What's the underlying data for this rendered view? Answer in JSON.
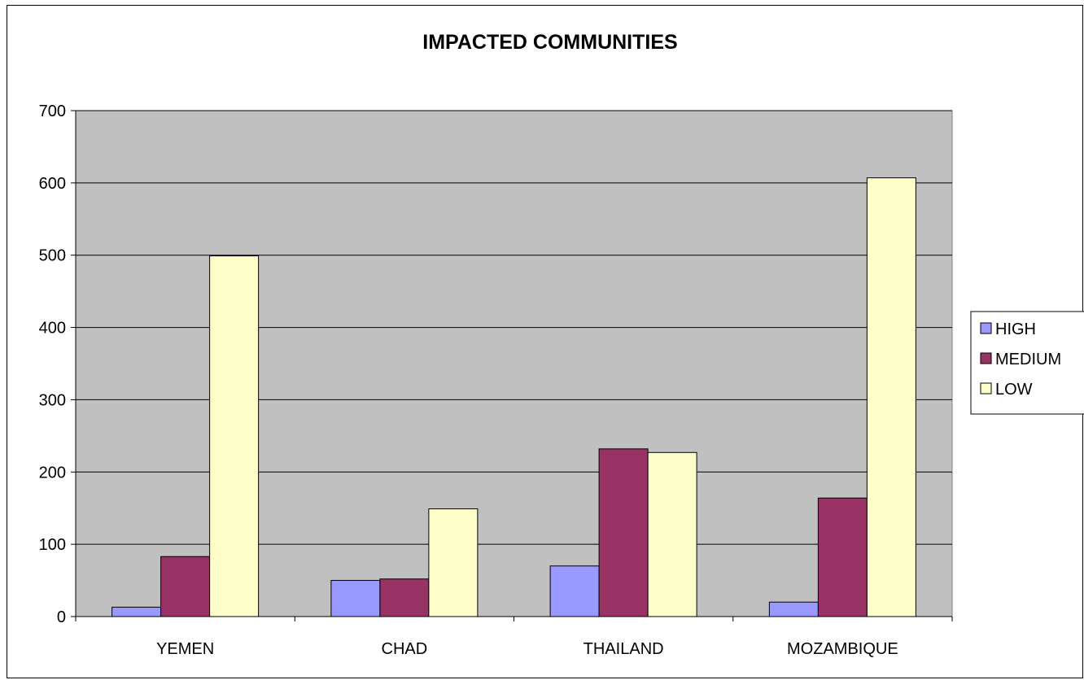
{
  "chart_data": {
    "type": "bar",
    "title": "IMPACTED COMMUNITIES",
    "xlabel": "",
    "ylabel": "",
    "categories": [
      "YEMEN",
      "CHAD",
      "THAILAND",
      "MOZAMBIQUE"
    ],
    "series": [
      {
        "name": "HIGH",
        "values": [
          13,
          50,
          70,
          20
        ],
        "color": "#9999ff"
      },
      {
        "name": "MEDIUM",
        "values": [
          83,
          52,
          232,
          164
        ],
        "color": "#993366"
      },
      {
        "name": "LOW",
        "values": [
          499,
          149,
          227,
          607
        ],
        "color": "#ffffcc"
      }
    ],
    "ylim": [
      0,
      700
    ],
    "yticks": [
      0,
      100,
      200,
      300,
      400,
      500,
      600,
      700
    ],
    "grid": true,
    "plot_background": "#c0c0c0",
    "legend": "right"
  }
}
